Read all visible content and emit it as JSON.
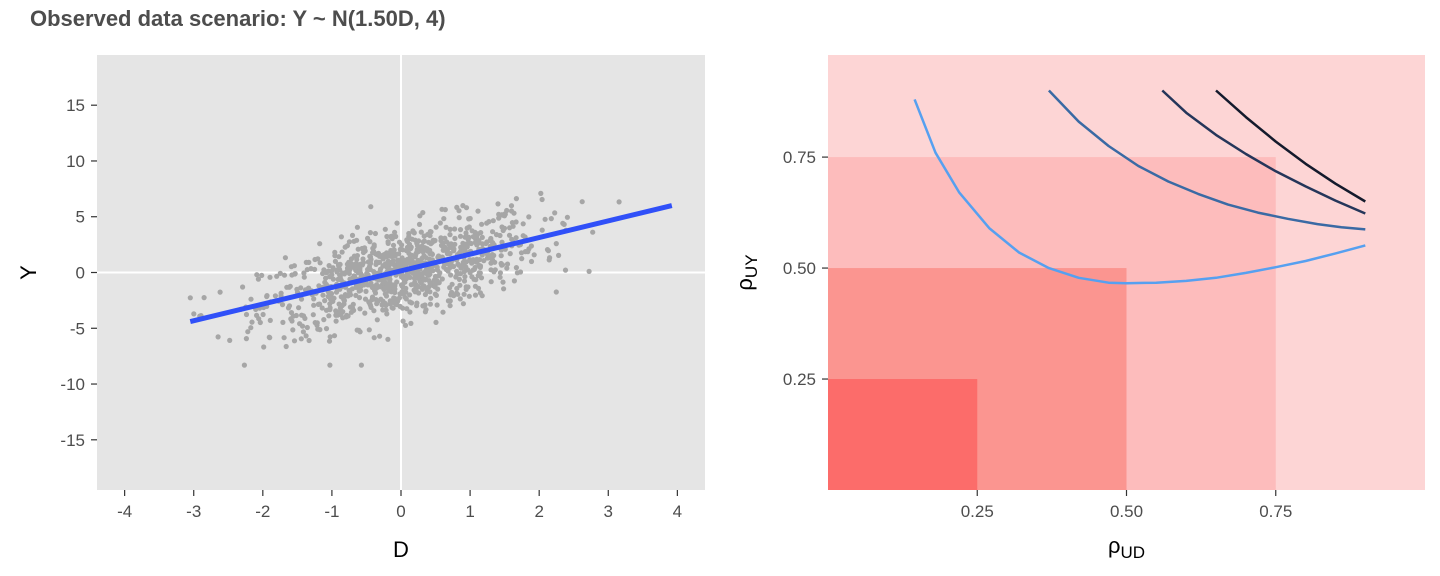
{
  "title": "Observed data scenario: Y ~ N(1.50D, 4)",
  "colors": {
    "panel_bg": "#e5e5e5",
    "grid": "#ffffff",
    "points": "#a6a6a6",
    "fit_line": "#3050f8",
    "region_1": "#fdd5d5",
    "region_2": "#fdbcbc",
    "region_3": "#fb9590",
    "region_4": "#fc6c6a",
    "curve_1": "#56a0f0",
    "curve_2": "#3a6aa4",
    "curve_3": "#25365a",
    "curve_4": "#141a2c"
  },
  "chart_data": [
    {
      "type": "scatter",
      "xlabel": "D",
      "ylabel": "Y",
      "xlim": [
        -4.4,
        4.4
      ],
      "ylim": [
        -19.5,
        19.5
      ],
      "x_ticks": [
        -4,
        -3,
        -2,
        -1,
        0,
        1,
        2,
        3,
        4
      ],
      "x_tick_labels": [
        "-4",
        "-3",
        "-2",
        "-1",
        "0",
        "1",
        "2",
        "3",
        "4"
      ],
      "y_ticks": [
        -15,
        -10,
        -5,
        0,
        5,
        10,
        15
      ],
      "y_tick_labels": [
        "-15",
        "-10",
        "-5",
        "0",
        "5",
        "10",
        "15"
      ],
      "reference_lines": {
        "x": 0,
        "y": 0
      },
      "points": {
        "count": 1000,
        "x_range": [
          -3.05,
          3.95
        ],
        "y_range": [
          -8.3,
          8.0
        ],
        "slope": 1.5,
        "intercept": 0
      },
      "fit_line": {
        "x": [
          -3.05,
          3.92
        ],
        "y": [
          -4.4,
          6.0
        ]
      }
    },
    {
      "type": "line",
      "xlabel": "ρ_UD",
      "ylabel": "ρ_UY",
      "xlim": [
        0,
        1
      ],
      "ylim": [
        0,
        0.98
      ],
      "x_ticks": [
        0.25,
        0.5,
        0.75
      ],
      "x_tick_labels": [
        "0.25",
        "0.50",
        "0.75"
      ],
      "y_ticks": [
        0.25,
        0.5,
        0.75
      ],
      "y_tick_labels": [
        "0.25",
        "0.50",
        "0.75"
      ],
      "regions": [
        {
          "x_max": 1.0,
          "y_max": 0.98
        },
        {
          "x_max": 0.75,
          "y_max": 0.75
        },
        {
          "x_max": 0.5,
          "y_max": 0.5
        },
        {
          "x_max": 0.25,
          "y_max": 0.25
        }
      ],
      "series": [
        {
          "x": [
            0.145,
            0.18,
            0.22,
            0.27,
            0.32,
            0.37,
            0.42,
            0.47,
            0.5,
            0.55,
            0.6,
            0.65,
            0.7,
            0.75,
            0.8,
            0.85,
            0.9
          ],
          "y": [
            0.88,
            0.76,
            0.67,
            0.59,
            0.535,
            0.5,
            0.478,
            0.467,
            0.466,
            0.467,
            0.471,
            0.478,
            0.489,
            0.502,
            0.516,
            0.533,
            0.551
          ]
        },
        {
          "x": [
            0.37,
            0.42,
            0.47,
            0.52,
            0.57,
            0.62,
            0.67,
            0.72,
            0.77,
            0.82,
            0.86,
            0.9
          ],
          "y": [
            0.9,
            0.83,
            0.775,
            0.73,
            0.695,
            0.667,
            0.643,
            0.625,
            0.611,
            0.599,
            0.592,
            0.587
          ]
        },
        {
          "x": [
            0.56,
            0.6,
            0.65,
            0.7,
            0.75,
            0.8,
            0.85,
            0.9
          ],
          "y": [
            0.9,
            0.85,
            0.8,
            0.757,
            0.718,
            0.684,
            0.652,
            0.623
          ]
        },
        {
          "x": [
            0.65,
            0.7,
            0.75,
            0.8,
            0.85,
            0.9
          ],
          "y": [
            0.9,
            0.84,
            0.785,
            0.735,
            0.69,
            0.65
          ]
        }
      ]
    }
  ]
}
